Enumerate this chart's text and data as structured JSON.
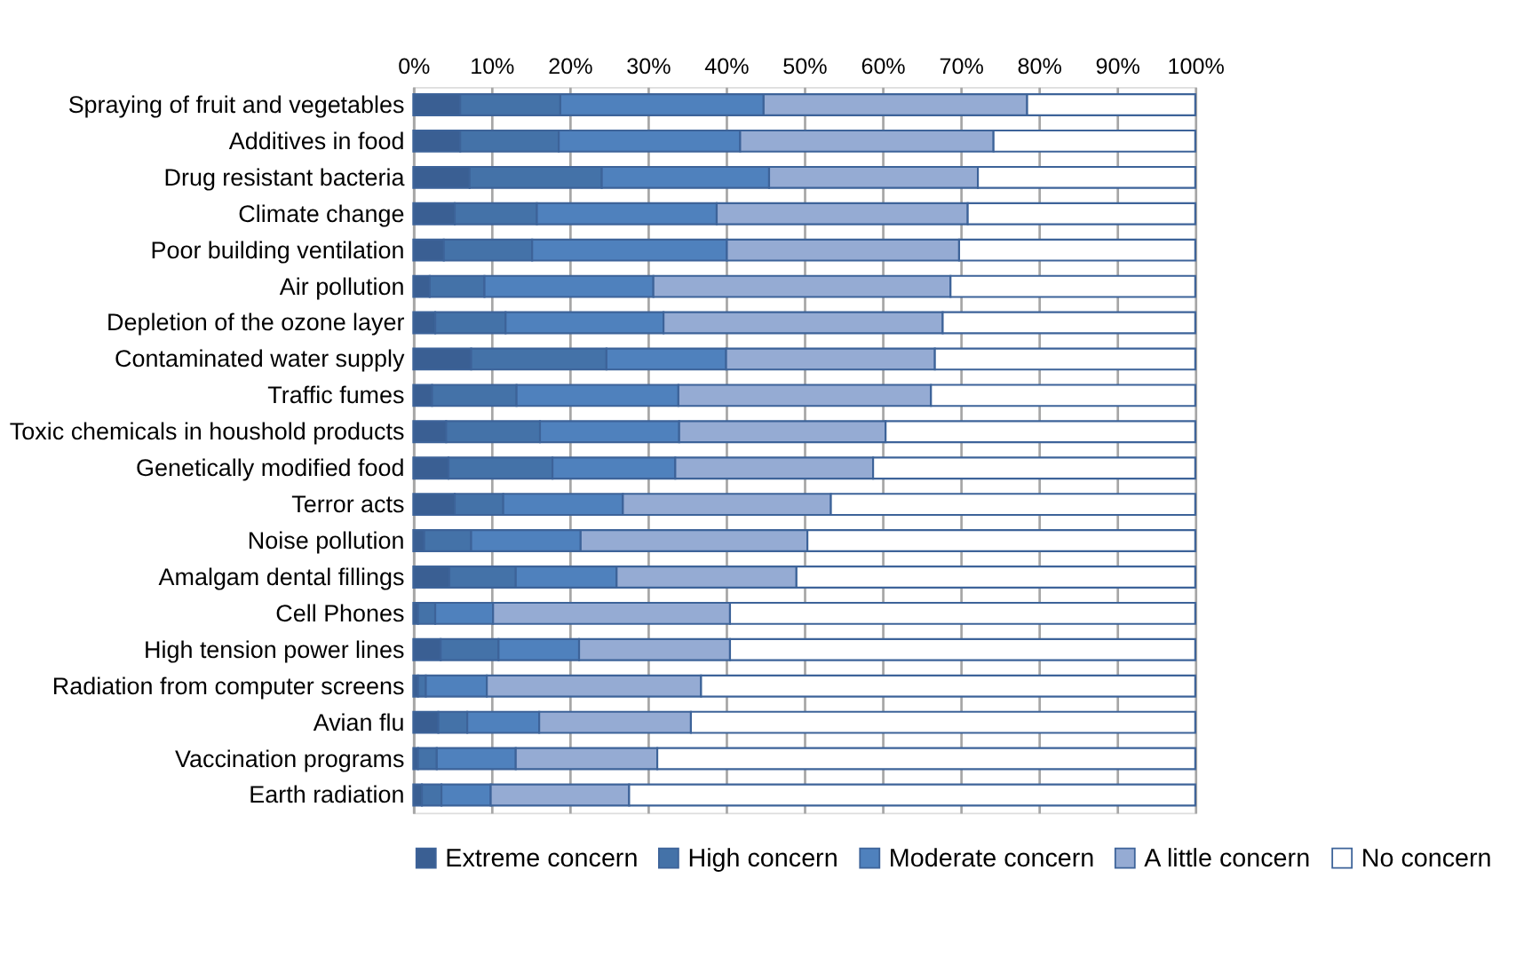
{
  "chart_data": {
    "type": "bar",
    "orientation": "horizontal",
    "stacked": true,
    "categories": [
      "Spraying of fruit and vegetables",
      "Additives in food",
      "Drug resistant bacteria",
      "Climate change",
      "Poor building ventilation",
      "Air pollution",
      "Depletion of the ozone layer",
      "Contaminated water supply",
      "Traffic fumes",
      "Toxic chemicals in houshold products",
      "Genetically modified food",
      "Terror acts",
      "Noise pollution",
      "Amalgam dental fillings",
      "Cell Phones",
      "High tension power lines",
      "Radiation from computer screens",
      "Avian flu",
      "Vaccination programs",
      "Earth radiation"
    ],
    "series": [
      {
        "name": "Extreme concern",
        "color": "#3a5f93",
        "values": [
          6.0,
          6.0,
          7.2,
          5.3,
          3.9,
          2.1,
          2.8,
          7.4,
          2.4,
          4.2,
          4.5,
          5.3,
          1.4,
          4.6,
          0.6,
          3.5,
          0.6,
          3.2,
          0.6,
          1.1
        ]
      },
      {
        "name": "High concern",
        "color": "#4472a8",
        "values": [
          12.8,
          12.6,
          16.9,
          10.5,
          11.3,
          7.0,
          9.0,
          17.3,
          10.8,
          12.0,
          13.3,
          6.2,
          6.0,
          8.5,
          2.2,
          7.4,
          1.0,
          3.7,
          2.4,
          2.5
        ]
      },
      {
        "name": "Moderate concern",
        "color": "#4f81bd",
        "values": [
          26.0,
          23.2,
          21.4,
          23.0,
          24.9,
          21.6,
          20.2,
          15.3,
          20.7,
          17.8,
          15.7,
          15.3,
          14.0,
          12.9,
          7.4,
          10.3,
          7.8,
          9.2,
          10.1,
          6.3
        ]
      },
      {
        "name": "A little concern",
        "color": "#95abd3",
        "values": [
          33.7,
          32.4,
          26.7,
          32.1,
          29.7,
          38.0,
          35.7,
          26.7,
          32.3,
          26.4,
          25.3,
          26.6,
          29.0,
          23.0,
          30.3,
          19.3,
          27.4,
          19.4,
          18.1,
          17.7
        ]
      },
      {
        "name": "No concern",
        "color": "#ffffff",
        "values": [
          21.5,
          25.8,
          27.8,
          29.1,
          30.2,
          31.3,
          32.3,
          33.3,
          33.8,
          39.6,
          41.2,
          46.6,
          49.6,
          51.0,
          59.5,
          59.5,
          63.2,
          64.5,
          68.8,
          72.4
        ]
      }
    ],
    "xlim": [
      0,
      100
    ],
    "xticks": [
      {
        "value": 0,
        "label": "0%"
      },
      {
        "value": 10,
        "label": "10%"
      },
      {
        "value": 20,
        "label": "20%"
      },
      {
        "value": 30,
        "label": "30%"
      },
      {
        "value": 40,
        "label": "40%"
      },
      {
        "value": 50,
        "label": "50%"
      },
      {
        "value": 60,
        "label": "60%"
      },
      {
        "value": 70,
        "label": "70%"
      },
      {
        "value": 80,
        "label": "80%"
      },
      {
        "value": 90,
        "label": "90%"
      },
      {
        "value": 100,
        "label": "100%"
      }
    ],
    "grid": "x",
    "legend": "bottom"
  }
}
